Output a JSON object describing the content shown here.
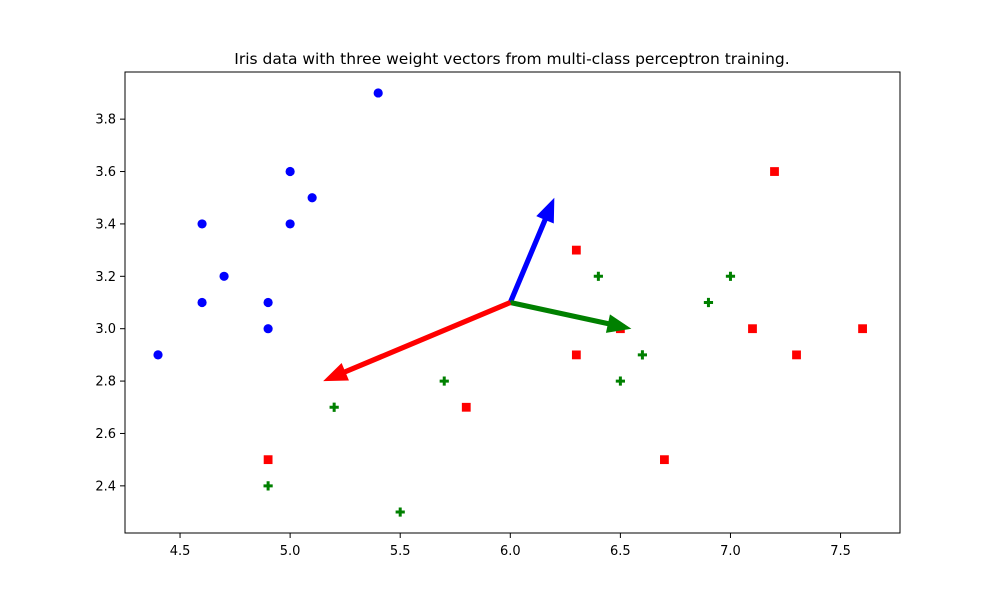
{
  "chart_data": {
    "type": "scatter",
    "title": "Iris data with three weight vectors from multi-class perceptron training.",
    "xlabel": "",
    "ylabel": "",
    "xlim": [
      4.25,
      7.77
    ],
    "ylim": [
      2.22,
      3.98
    ],
    "x_ticks": [
      4.5,
      5.0,
      5.5,
      6.0,
      6.5,
      7.0,
      7.5
    ],
    "x_tick_labels": [
      "4.5",
      "5.0",
      "5.5",
      "6.0",
      "6.5",
      "7.0",
      "7.5"
    ],
    "y_ticks": [
      2.4,
      2.6,
      2.8,
      3.0,
      3.2,
      3.4,
      3.6,
      3.8
    ],
    "y_tick_labels": [
      "2.4",
      "2.6",
      "2.8",
      "3.0",
      "3.2",
      "3.4",
      "3.6",
      "3.8"
    ],
    "grid": false,
    "legend": "none",
    "series": [
      {
        "marker": "circle",
        "color": "#0000ff",
        "points": [
          [
            5.4,
            3.9
          ],
          [
            5.0,
            3.6
          ],
          [
            5.1,
            3.5
          ],
          [
            4.6,
            3.4
          ],
          [
            5.0,
            3.4
          ],
          [
            4.7,
            3.2
          ],
          [
            4.6,
            3.1
          ],
          [
            4.9,
            3.1
          ],
          [
            4.9,
            3.0
          ],
          [
            4.4,
            2.9
          ]
        ]
      },
      {
        "marker": "square",
        "color": "#ff0000",
        "points": [
          [
            7.2,
            3.6
          ],
          [
            6.3,
            3.3
          ],
          [
            7.1,
            3.0
          ],
          [
            7.6,
            3.0
          ],
          [
            6.5,
            3.0
          ],
          [
            6.3,
            2.9
          ],
          [
            7.3,
            2.9
          ],
          [
            5.8,
            2.7
          ],
          [
            6.7,
            2.5
          ],
          [
            4.9,
            2.5
          ]
        ]
      },
      {
        "marker": "plus",
        "color": "#008000",
        "points": [
          [
            6.4,
            3.2
          ],
          [
            7.0,
            3.2
          ],
          [
            6.9,
            3.1
          ],
          [
            6.6,
            2.9
          ],
          [
            5.7,
            2.8
          ],
          [
            6.5,
            2.8
          ],
          [
            5.2,
            2.7
          ],
          [
            4.9,
            2.4
          ],
          [
            5.5,
            2.3
          ]
        ]
      }
    ],
    "arrows": [
      {
        "color": "#0000ff",
        "from": [
          6.0,
          3.1
        ],
        "to": [
          6.2,
          3.5
        ]
      },
      {
        "color": "#008000",
        "from": [
          6.0,
          3.1
        ],
        "to": [
          6.55,
          3.0
        ]
      },
      {
        "color": "#ff0000",
        "from": [
          6.0,
          3.1
        ],
        "to": [
          5.15,
          2.8
        ]
      }
    ]
  }
}
